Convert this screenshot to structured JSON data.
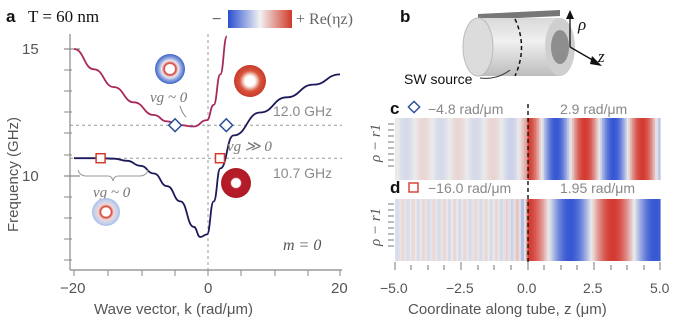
{
  "panel_a": {
    "letter": "a",
    "title": "T = 60 nm",
    "colorbar_minus": "−",
    "colorbar_plus": "+ Re(ηz)",
    "m_label": "m = 0",
    "vg_zero_upper": "vg ~ 0",
    "vg_zero_lower": "vg ~ 0",
    "vg_large": "vg ≫ 0",
    "freq_upper": "12.0 GHz",
    "freq_lower": "10.7 GHz",
    "colors": {
      "upper_branch": "#a8285e",
      "lower_branch": "#1c1a5a",
      "diamond": "#2a4d9c",
      "square": "#d23b2e",
      "guide": "#999999"
    }
  },
  "panel_b": {
    "letter": "b",
    "source_label": "SW source",
    "axis_rho": "ρ",
    "axis_z": "z"
  },
  "panel_c": {
    "letter": "c",
    "left_k": "−4.8 rad/μm",
    "right_k": "2.9 rad/μm",
    "ylabel": "ρ − r1"
  },
  "panel_d": {
    "letter": "d",
    "left_k": "−16.0 rad/μm",
    "right_k": "1.95 rad/μm",
    "ylabel": "ρ − r1"
  },
  "chart_data": [
    {
      "type": "line",
      "title": "T = 60 nm",
      "xlabel": "Wave vector, k (rad/μm)",
      "ylabel": "Frequency (GHz)",
      "xlim": [
        -20,
        20
      ],
      "ylim": [
        6.5,
        15.8
      ],
      "xticks": [
        "−20",
        "0",
        "20"
      ],
      "yticks": [
        "10",
        "15"
      ],
      "series": [
        {
          "k": [
            -20,
            -17,
            -14,
            -11,
            -8,
            -6,
            -4,
            -2,
            0,
            1,
            2,
            3
          ],
          "f": [
            15.0,
            14.2,
            13.5,
            12.9,
            12.4,
            12.15,
            12.0,
            11.95,
            12.2,
            12.8,
            14.0,
            15.5
          ]
        },
        {
          "k": [
            -20,
            -16,
            -14,
            -12,
            -10,
            -8,
            -6,
            -4,
            -2,
            -1,
            0,
            1,
            2,
            4,
            8,
            12,
            16,
            20
          ],
          "f": [
            10.7,
            10.7,
            10.68,
            10.6,
            10.4,
            10.1,
            9.6,
            9.0,
            8.0,
            7.6,
            7.7,
            9.0,
            10.3,
            11.6,
            12.5,
            13.1,
            13.6,
            14.0
          ]
        }
      ],
      "markers": [
        {
          "shape": "diamond",
          "k": -4.8,
          "f": 12.0
        },
        {
          "shape": "diamond",
          "k": 2.9,
          "f": 12.0
        },
        {
          "shape": "square",
          "k": -16.0,
          "f": 10.7
        },
        {
          "shape": "square",
          "k": 1.95,
          "f": 10.7
        }
      ],
      "hlines": [
        12.0,
        10.7
      ]
    },
    {
      "type": "heatmap",
      "panel": "c",
      "xlabel": "Coordinate along tube, z (μm)",
      "xlim": [
        -5.0,
        5.0
      ],
      "xticks": [
        "−5.0",
        "−2.5",
        "0.0",
        "2.5",
        "5.0"
      ],
      "k_left": -4.8,
      "k_right": 2.9
    },
    {
      "type": "heatmap",
      "panel": "d",
      "xlabel": "Coordinate along tube, z (μm)",
      "xlim": [
        -5.0,
        5.0
      ],
      "xticks": [
        "−5.0",
        "−2.5",
        "0.0",
        "2.5",
        "5.0"
      ],
      "k_left": -16.0,
      "k_right": 1.95
    }
  ],
  "bottom_axis": {
    "xlabel": "Coordinate along tube, z (μm)",
    "ticks": [
      "−5.0",
      "−2.5",
      "0.0",
      "2.5",
      "5.0"
    ]
  }
}
